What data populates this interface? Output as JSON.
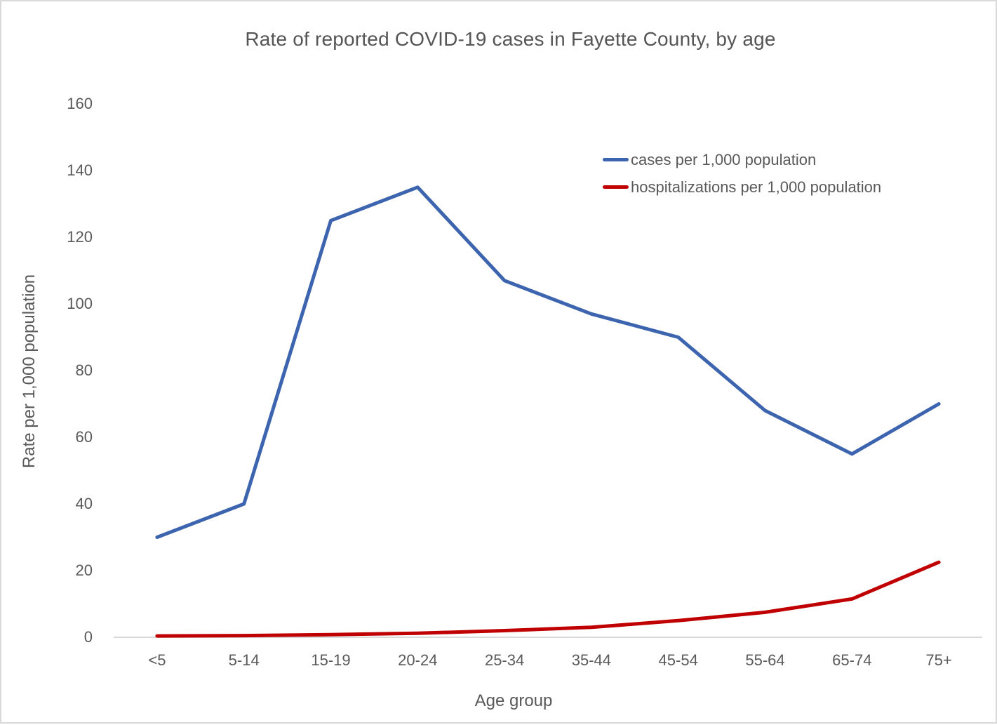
{
  "chart_data": {
    "type": "line",
    "title": "Rate of reported COVID-19 cases in Fayette County, by age",
    "xlabel": "Age group",
    "ylabel": "Rate per 1,000 population",
    "categories": [
      "<5",
      "5-14",
      "15-19",
      "20-24",
      "25-34",
      "35-44",
      "45-54",
      "55-64",
      "65-74",
      "75+"
    ],
    "series": [
      {
        "name": "cases per 1,000 population",
        "color": "#3D64AE",
        "values": [
          30,
          40,
          125,
          135,
          107,
          97,
          90,
          68,
          55,
          70
        ]
      },
      {
        "name": "hospitalizations per 1,000 population",
        "color": "#C00000",
        "values": [
          0.4,
          0.5,
          0.8,
          1.2,
          2,
          3,
          5,
          7.5,
          11.5,
          22.5
        ]
      }
    ],
    "ylim": [
      0,
      160
    ],
    "yticks": [
      0,
      20,
      40,
      60,
      80,
      100,
      120,
      140,
      160
    ],
    "grid": false,
    "legend_position": "upper-right-inside"
  },
  "colors": {
    "text": "#595959",
    "axis_line": "#D9D9D9",
    "background": "#FFFFFF",
    "border": "#D9D9D9"
  }
}
